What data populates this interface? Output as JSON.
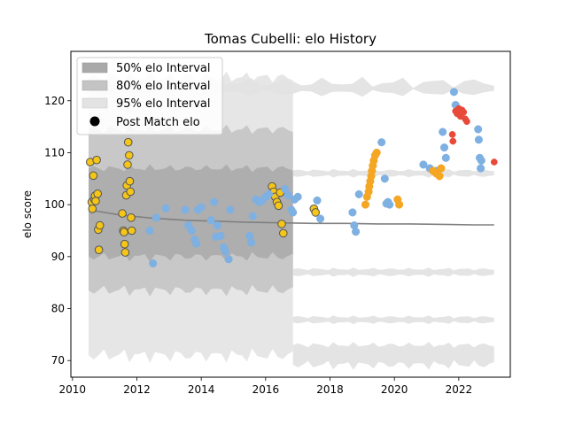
{
  "chart_data": {
    "type": "scatter",
    "title": "Tomas Cubelli: elo History",
    "xlabel": "",
    "ylabel": "elo score",
    "xlim": [
      2009.95,
      2023.6
    ],
    "ylim": [
      66.8,
      129.5
    ],
    "xticks": [
      2010,
      2012,
      2014,
      2016,
      2018,
      2020,
      2022
    ],
    "yticks": [
      70,
      80,
      90,
      100,
      110,
      120
    ],
    "grid": false,
    "legend": {
      "placement": "top-left",
      "entries": [
        {
          "label": "50% elo Interval",
          "color": "#a9a9a9"
        },
        {
          "label": "80% elo Interval",
          "color": "#c4c4c4"
        },
        {
          "label": "95% elo Interval",
          "color": "#e3e3e3"
        },
        {
          "label": "Post Match elo",
          "color": "#000000"
        }
      ]
    },
    "mean_line": {
      "x": [
        2010.5,
        2011.5,
        2012.5,
        2013.5,
        2014.5,
        2015.5,
        2016.5,
        2017.5,
        2018.5,
        2019.5,
        2020.5,
        2021.5,
        2022.5,
        2023.1
      ],
      "y": [
        99.0,
        98.0,
        97.4,
        97.0,
        96.8,
        96.6,
        96.5,
        96.4,
        96.4,
        96.3,
        96.3,
        96.2,
        96.1,
        96.1
      ]
    },
    "series": [
      {
        "color": "#f5c518",
        "edge": "#555555",
        "points": [
          [
            2010.55,
            108.2
          ],
          [
            2010.6,
            100.5
          ],
          [
            2010.62,
            99.2
          ],
          [
            2010.65,
            105.6
          ],
          [
            2010.68,
            101.0
          ],
          [
            2010.7,
            101.7
          ],
          [
            2010.72,
            100.7
          ],
          [
            2010.75,
            108.6
          ],
          [
            2010.78,
            102.1
          ],
          [
            2010.8,
            95.2
          ],
          [
            2010.82,
            91.3
          ],
          [
            2010.85,
            96.0
          ],
          [
            2011.55,
            98.3
          ],
          [
            2011.58,
            95.0
          ],
          [
            2011.6,
            94.7
          ],
          [
            2011.62,
            92.4
          ],
          [
            2011.64,
            90.8
          ],
          [
            2011.67,
            101.8
          ],
          [
            2011.69,
            103.7
          ],
          [
            2011.71,
            107.7
          ],
          [
            2011.73,
            112.0
          ],
          [
            2011.76,
            109.5
          ],
          [
            2011.78,
            104.5
          ],
          [
            2011.8,
            102.5
          ],
          [
            2011.82,
            97.5
          ],
          [
            2011.84,
            95.0
          ],
          [
            2016.2,
            103.5
          ],
          [
            2016.25,
            102.5
          ],
          [
            2016.3,
            101.5
          ],
          [
            2016.35,
            100.5
          ],
          [
            2016.4,
            99.8
          ],
          [
            2016.45,
            102.3
          ],
          [
            2016.5,
            96.3
          ],
          [
            2016.55,
            94.5
          ],
          [
            2017.5,
            99.2
          ],
          [
            2017.55,
            98.5
          ]
        ]
      },
      {
        "color": "#7eb0e2",
        "edge": "#7eb0e2",
        "points": [
          [
            2012.4,
            95.0
          ],
          [
            2012.5,
            88.7
          ],
          [
            2012.6,
            97.5
          ],
          [
            2012.9,
            99.3
          ],
          [
            2013.5,
            99.0
          ],
          [
            2013.6,
            96.0
          ],
          [
            2013.7,
            95.0
          ],
          [
            2013.8,
            93.3
          ],
          [
            2013.85,
            92.5
          ],
          [
            2013.9,
            99.0
          ],
          [
            2014.0,
            99.5
          ],
          [
            2014.3,
            97.0
          ],
          [
            2014.4,
            100.5
          ],
          [
            2014.45,
            93.8
          ],
          [
            2014.5,
            96.0
          ],
          [
            2014.6,
            94.0
          ],
          [
            2014.7,
            91.8
          ],
          [
            2014.75,
            91.0
          ],
          [
            2014.85,
            89.5
          ],
          [
            2014.9,
            99.0
          ],
          [
            2015.5,
            94.0
          ],
          [
            2015.55,
            92.7
          ],
          [
            2015.6,
            97.8
          ],
          [
            2015.7,
            101.0
          ],
          [
            2015.8,
            100.5
          ],
          [
            2015.9,
            100.8
          ],
          [
            2016.0,
            101.5
          ],
          [
            2016.1,
            102.0
          ],
          [
            2016.6,
            103.0
          ],
          [
            2016.7,
            101.8
          ],
          [
            2016.8,
            99.0
          ],
          [
            2016.85,
            98.5
          ],
          [
            2016.9,
            101.0
          ],
          [
            2017.0,
            101.5
          ],
          [
            2017.6,
            100.8
          ],
          [
            2017.7,
            97.3
          ],
          [
            2018.7,
            98.5
          ],
          [
            2018.75,
            96.0
          ],
          [
            2018.8,
            94.8
          ],
          [
            2018.9,
            102.0
          ],
          [
            2019.6,
            112.0
          ],
          [
            2019.7,
            105.0
          ],
          [
            2019.75,
            100.2
          ],
          [
            2019.8,
            100.5
          ],
          [
            2019.85,
            100.0
          ],
          [
            2020.9,
            107.7
          ],
          [
            2021.1,
            107.0
          ],
          [
            2021.3,
            106.5
          ],
          [
            2021.5,
            114.0
          ],
          [
            2021.55,
            111.0
          ],
          [
            2021.6,
            109.0
          ],
          [
            2021.85,
            121.7
          ],
          [
            2021.9,
            119.2
          ],
          [
            2022.6,
            114.5
          ],
          [
            2022.62,
            112.5
          ],
          [
            2022.65,
            109.0
          ],
          [
            2022.68,
            107.0
          ],
          [
            2022.7,
            108.5
          ]
        ]
      },
      {
        "color": "#f5a623",
        "edge": "#f5a623",
        "points": [
          [
            2019.1,
            100.0
          ],
          [
            2019.15,
            101.5
          ],
          [
            2019.2,
            102.5
          ],
          [
            2019.22,
            103.5
          ],
          [
            2019.25,
            104.5
          ],
          [
            2019.28,
            105.5
          ],
          [
            2019.3,
            106.5
          ],
          [
            2019.33,
            107.5
          ],
          [
            2019.36,
            108.5
          ],
          [
            2019.4,
            109.5
          ],
          [
            2019.45,
            110.0
          ],
          [
            2020.1,
            101.0
          ],
          [
            2020.15,
            100.0
          ],
          [
            2021.2,
            106.5
          ],
          [
            2021.3,
            106.0
          ],
          [
            2021.4,
            105.5
          ],
          [
            2021.45,
            107.0
          ]
        ]
      },
      {
        "color": "#e84a3a",
        "edge": "#e84a3a",
        "points": [
          [
            2021.8,
            113.5
          ],
          [
            2021.82,
            112.2
          ],
          [
            2021.9,
            118.0
          ],
          [
            2021.95,
            117.5
          ],
          [
            2022.0,
            118.5
          ],
          [
            2022.05,
            117.0
          ],
          [
            2022.1,
            118.2
          ],
          [
            2022.15,
            117.8
          ],
          [
            2022.2,
            116.5
          ],
          [
            2022.25,
            116.0
          ],
          [
            2023.1,
            108.2
          ]
        ]
      }
    ]
  }
}
